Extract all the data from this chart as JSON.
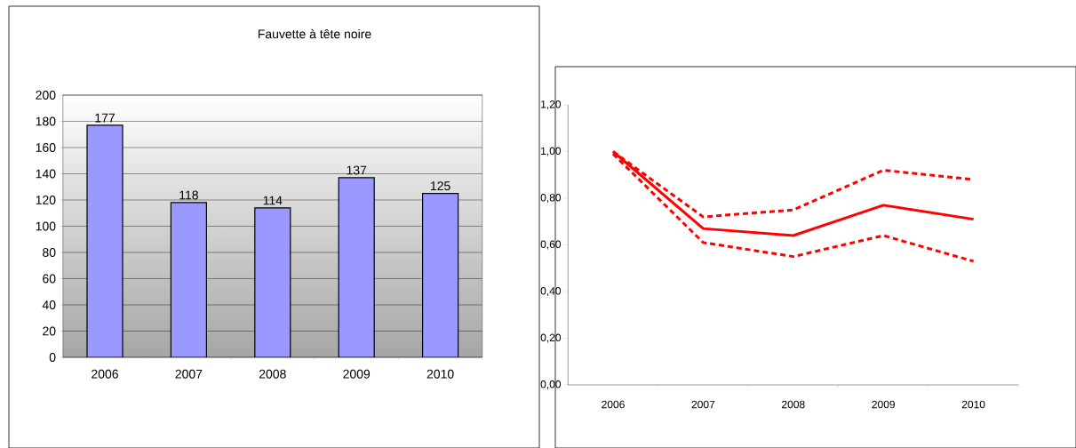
{
  "chart_data": [
    {
      "type": "bar",
      "title": "Fauvette à tête noire",
      "categories": [
        "2006",
        "2007",
        "2008",
        "2009",
        "2010"
      ],
      "values": [
        177,
        118,
        114,
        137,
        125
      ],
      "color": "#9999ff",
      "ylim": [
        0,
        200
      ],
      "yticks": [
        0,
        20,
        40,
        60,
        80,
        100,
        120,
        140,
        160,
        180,
        200
      ],
      "grid": "y",
      "data_labels": true
    },
    {
      "type": "line",
      "categories": [
        "2006",
        "2007",
        "2008",
        "2009",
        "2010"
      ],
      "ylim": [
        0,
        1.2
      ],
      "yticks": [
        {
          "value": 0,
          "label": "0,00"
        },
        {
          "value": 0.2,
          "label": "0,20"
        },
        {
          "value": 0.4,
          "label": "0,40"
        },
        {
          "value": 0.6,
          "label": "0,60"
        },
        {
          "value": 0.8,
          "label": "0,80"
        },
        {
          "value": 1.0,
          "label": "1,00"
        },
        {
          "value": 1.2,
          "label": "1,20"
        }
      ],
      "series": [
        {
          "color": "#ff0000",
          "line_style": "solid",
          "values": [
            1.0,
            0.67,
            0.64,
            0.77,
            0.71
          ]
        },
        {
          "color": "#ff0000",
          "line_style": "dashed",
          "values": [
            1.0,
            0.72,
            0.75,
            0.92,
            0.88
          ]
        },
        {
          "color": "#ff0000",
          "line_style": "dashed",
          "values": [
            0.99,
            0.61,
            0.55,
            0.64,
            0.53
          ]
        }
      ]
    }
  ]
}
